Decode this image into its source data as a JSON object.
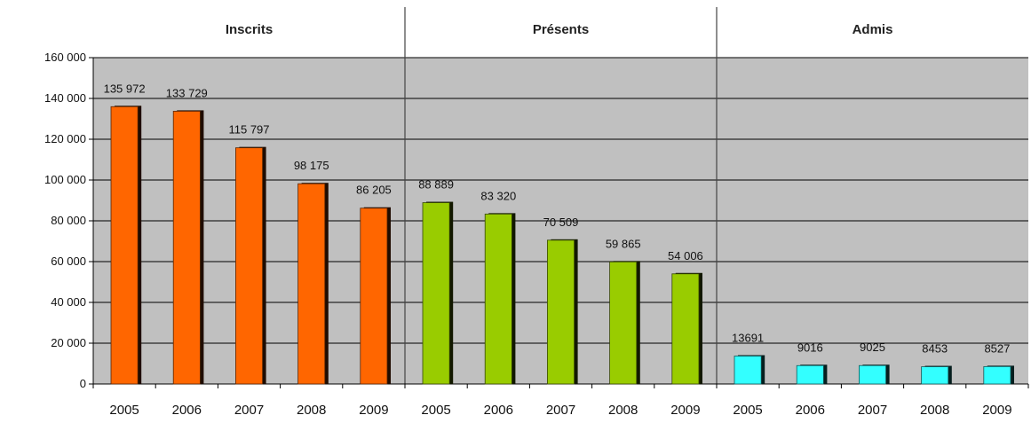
{
  "chart_data": {
    "type": "bar",
    "title": "",
    "xlabel": "",
    "ylabel": "",
    "ylim": [
      0,
      160000
    ],
    "yticks": [
      0,
      20000,
      40000,
      60000,
      80000,
      100000,
      120000,
      140000,
      160000
    ],
    "ytick_labels": [
      "0",
      "20 000",
      "40 000",
      "60 000",
      "80 000",
      "100 000",
      "120 000",
      "140 000",
      "160 000"
    ],
    "grid": true,
    "legend": "none",
    "plot_background": "#c0c0c0",
    "groups": [
      {
        "name": "Inscrits",
        "color": "#ff6600",
        "categories": [
          "2005",
          "2006",
          "2007",
          "2008",
          "2009"
        ],
        "values": [
          135972,
          133729,
          115797,
          98175,
          86205
        ],
        "labels": [
          "135 972",
          "133 729",
          "115 797",
          "98 175",
          "86 205"
        ]
      },
      {
        "name": "Présents",
        "color": "#99cc00",
        "categories": [
          "2005",
          "2006",
          "2007",
          "2008",
          "2009"
        ],
        "values": [
          88889,
          83320,
          70509,
          59865,
          54006
        ],
        "labels": [
          "88 889",
          "83 320",
          "70 509",
          "59 865",
          "54 006"
        ]
      },
      {
        "name": "Admis",
        "color": "#33ffff",
        "categories": [
          "2005",
          "2006",
          "2007",
          "2008",
          "2009"
        ],
        "values": [
          13691,
          9016,
          9025,
          8453,
          8527
        ],
        "labels": [
          "13691",
          "9016",
          "9025",
          "8453",
          "8527"
        ]
      }
    ]
  }
}
